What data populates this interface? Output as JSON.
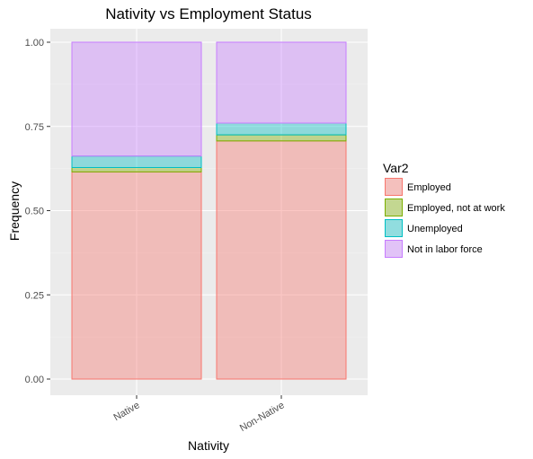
{
  "chart_data": {
    "type": "bar",
    "stacked": true,
    "title": "Nativity vs Employment Status",
    "xlabel": "Nativity",
    "ylabel": "Frequency",
    "categories": [
      "Native",
      "Non-Native"
    ],
    "ylim": [
      0,
      1
    ],
    "yticks": [
      "0.00",
      "0.25",
      "0.50",
      "0.75",
      "1.00"
    ],
    "ytick_values": [
      0,
      0.25,
      0.5,
      0.75,
      1.0
    ],
    "legend_title": "Var2",
    "legend_position": "right",
    "grid": true,
    "background": "#ebebeb",
    "series": [
      {
        "name": "Employed",
        "fill": "#f8766d",
        "values": [
          0.615,
          0.707
        ]
      },
      {
        "name": "Employed, not at work",
        "fill": "#7cae00",
        "values": [
          0.013,
          0.018
        ]
      },
      {
        "name": "Unemployed",
        "fill": "#00bfc4",
        "values": [
          0.034,
          0.035
        ]
      },
      {
        "name": "Not in labor force",
        "fill": "#c77cff",
        "values": [
          0.338,
          0.24
        ]
      }
    ]
  }
}
